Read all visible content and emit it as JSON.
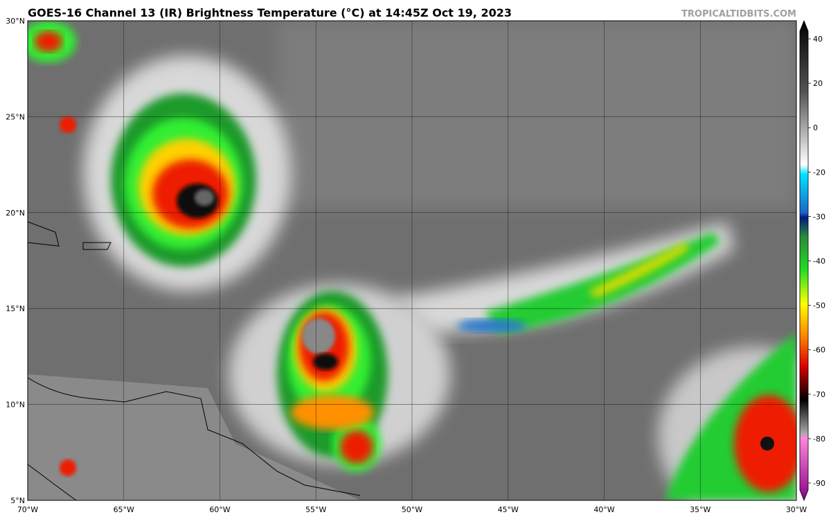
{
  "map": {
    "title": "GOES-16 Channel 13 (IR) Brightness Temperature (°C) at 14:45Z Oct 19, 2023",
    "watermark": "TROPICALTIDBITS.COM",
    "latitudes": [
      "30°N",
      "25°N",
      "20°N",
      "15°N",
      "10°N",
      "5°N"
    ],
    "longitudes": [
      "70°W",
      "65°W",
      "60°W",
      "55°W",
      "50°W",
      "45°W",
      "40°W",
      "35°W",
      "30°W"
    ]
  },
  "colorbar": {
    "ticks": [
      "40",
      "20",
      "0",
      "-20",
      "-30",
      "-40",
      "-50",
      "-60",
      "-70",
      "-80",
      "-90"
    ]
  }
}
